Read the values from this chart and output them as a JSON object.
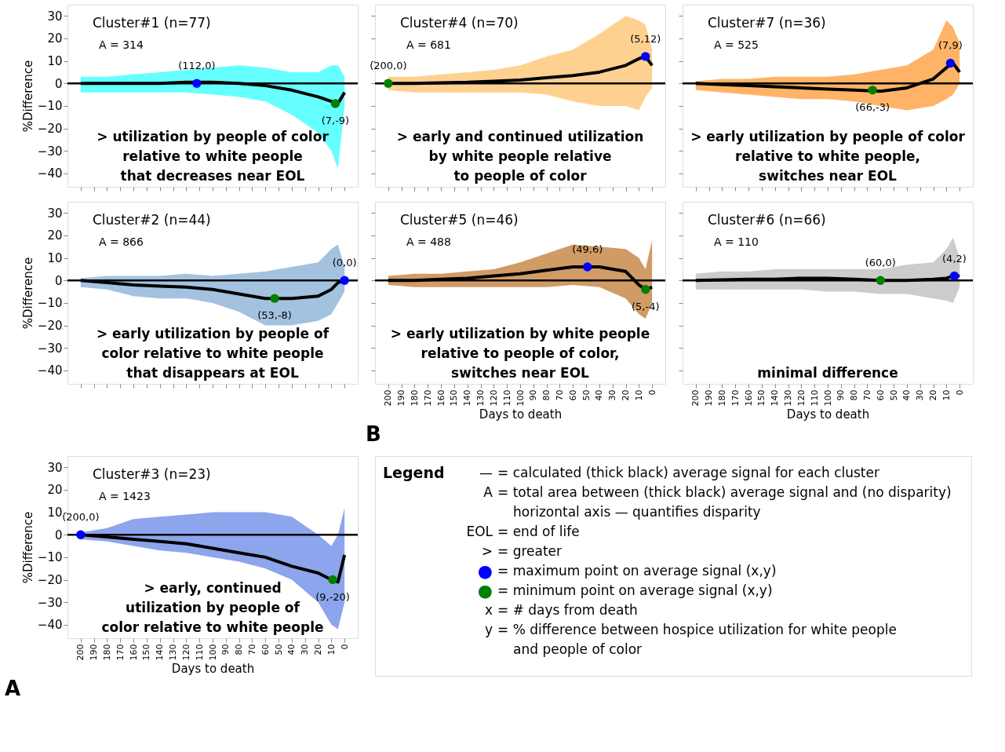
{
  "chart_data": [
    {
      "type": "line",
      "title": "Cluster#1 (n=77)",
      "ylabel": "%Difference",
      "tick_labels": "y",
      "grid": false,
      "xlim": [
        210,
        -10
      ],
      "ylim": [
        -46,
        35
      ],
      "xticks": [
        200,
        190,
        180,
        170,
        160,
        150,
        140,
        130,
        120,
        110,
        100,
        90,
        80,
        70,
        60,
        50,
        40,
        30,
        20,
        10,
        0
      ],
      "yticks": [
        -40,
        -30,
        -20,
        -10,
        0,
        10,
        20,
        30
      ],
      "x": [
        200,
        180,
        160,
        140,
        120,
        100,
        80,
        60,
        40,
        20,
        10,
        5,
        0
      ],
      "series": [
        {
          "type": "line",
          "color": "#000000",
          "values": [
            0,
            0,
            0,
            0,
            0.5,
            0.5,
            0,
            -1,
            -3,
            -6,
            -8,
            -9,
            -4
          ],
          "lower": [
            -4,
            -4,
            -4,
            -4,
            -4,
            -5,
            -6,
            -8,
            -14,
            -22,
            -30,
            -38,
            -10
          ],
          "upper": [
            3,
            3,
            4,
            5,
            6,
            7,
            8,
            7,
            5,
            5,
            8,
            8,
            3
          ]
        },
        {
          "type": "scatter",
          "color": "#0000ff",
          "x": [
            112
          ],
          "values": [
            0
          ]
        },
        {
          "type": "scatter",
          "color": "#008000",
          "x": [
            7
          ],
          "values": [
            -9
          ]
        }
      ],
      "ref_lines": [
        {
          "axis": "y",
          "value": 0
        }
      ],
      "colors": [
        "#00ffff"
      ],
      "annotations": [
        "A = 314",
        "> utilization by people of color\nrelative to white people\nthat decreases near EOL",
        {
          "text": "(112,0)",
          "x": 112,
          "y": 0
        },
        {
          "text": "(7,-9)",
          "x": 7,
          "y": -9
        }
      ]
    },
    {
      "type": "line",
      "title": "Cluster#4 (n=70)",
      "tick_labels": false,
      "grid": false,
      "xlim": [
        210,
        -10
      ],
      "ylim": [
        -46,
        35
      ],
      "xticks": [
        200,
        190,
        180,
        170,
        160,
        150,
        140,
        130,
        120,
        110,
        100,
        90,
        80,
        70,
        60,
        50,
        40,
        30,
        20,
        10,
        0
      ],
      "yticks": [
        -40,
        -30,
        -20,
        -10,
        0,
        10,
        20,
        30
      ],
      "x": [
        200,
        180,
        160,
        140,
        120,
        100,
        80,
        60,
        40,
        20,
        10,
        5,
        0
      ],
      "series": [
        {
          "type": "line",
          "color": "#000000",
          "values": [
            0,
            0,
            0.3,
            0.5,
            1,
            1.5,
            2.5,
            3.5,
            5,
            8,
            11,
            12,
            8
          ],
          "lower": [
            -3,
            -4,
            -4,
            -4,
            -4,
            -4,
            -5,
            -8,
            -10,
            -10,
            -12,
            -6,
            -2
          ],
          "upper": [
            3,
            3,
            4,
            5,
            6,
            8,
            12,
            15,
            22,
            30,
            28,
            26,
            15
          ]
        },
        {
          "type": "scatter",
          "color": "#0000ff",
          "x": [
            5
          ],
          "values": [
            12
          ]
        },
        {
          "type": "scatter",
          "color": "#008000",
          "x": [
            200
          ],
          "values": [
            0
          ]
        }
      ],
      "ref_lines": [
        {
          "axis": "y",
          "value": 0
        }
      ],
      "colors": [
        "#ffb347"
      ],
      "annotations": [
        "A = 681",
        "> early and continued utilization\nby white people relative\nto people of color",
        {
          "text": "(5,12)",
          "x": 5,
          "y": 12
        },
        {
          "text": "(200,0)",
          "x": 200,
          "y": 0
        }
      ]
    },
    {
      "type": "line",
      "title": "Cluster#7 (n=36)",
      "tick_labels": false,
      "grid": false,
      "xlim": [
        210,
        -10
      ],
      "ylim": [
        -46,
        35
      ],
      "xticks": [
        200,
        190,
        180,
        170,
        160,
        150,
        140,
        130,
        120,
        110,
        100,
        90,
        80,
        70,
        60,
        50,
        40,
        30,
        20,
        10,
        0
      ],
      "yticks": [
        -40,
        -30,
        -20,
        -10,
        0,
        10,
        20,
        30
      ],
      "x": [
        200,
        180,
        160,
        140,
        120,
        100,
        80,
        60,
        40,
        20,
        10,
        5,
        0
      ],
      "series": [
        {
          "type": "line",
          "color": "#000000",
          "values": [
            0,
            -0.5,
            -1,
            -1.5,
            -2,
            -2.5,
            -3,
            -3.5,
            -2,
            2,
            7,
            9,
            5
          ],
          "lower": [
            -3,
            -4,
            -5,
            -6,
            -7,
            -7,
            -8,
            -10,
            -12,
            -10,
            -7,
            -5,
            0
          ],
          "upper": [
            1,
            2,
            2,
            3,
            3,
            3,
            4,
            6,
            8,
            15,
            28,
            25,
            18
          ]
        },
        {
          "type": "scatter",
          "color": "#0000ff",
          "x": [
            7
          ],
          "values": [
            9
          ]
        },
        {
          "type": "scatter",
          "color": "#008000",
          "x": [
            66
          ],
          "values": [
            -3
          ]
        }
      ],
      "ref_lines": [
        {
          "axis": "y",
          "value": 0
        }
      ],
      "colors": [
        "#ff8000"
      ],
      "annotations": [
        "A = 525",
        "> early utilization by people of color\nrelative to white people,\nswitches near EOL",
        {
          "text": "(7,9)",
          "x": 7,
          "y": 9
        },
        {
          "text": "(66,-3)",
          "x": 66,
          "y": -3
        }
      ]
    },
    {
      "type": "line",
      "title": "Cluster#2 (n=44)",
      "ylabel": "%Difference",
      "tick_labels": "y",
      "grid": false,
      "xlim": [
        210,
        -10
      ],
      "ylim": [
        -46,
        35
      ],
      "xticks": [
        200,
        190,
        180,
        170,
        160,
        150,
        140,
        130,
        120,
        110,
        100,
        90,
        80,
        70,
        60,
        50,
        40,
        30,
        20,
        10,
        0
      ],
      "yticks": [
        -40,
        -30,
        -20,
        -10,
        0,
        10,
        20,
        30
      ],
      "x": [
        200,
        180,
        160,
        140,
        120,
        100,
        80,
        60,
        40,
        20,
        10,
        5,
        0
      ],
      "series": [
        {
          "type": "line",
          "color": "#000000",
          "values": [
            0,
            -1,
            -2,
            -2.5,
            -3,
            -4,
            -6,
            -8,
            -8,
            -7,
            -4,
            -1,
            0
          ],
          "lower": [
            -3,
            -4,
            -7,
            -8,
            -8,
            -10,
            -14,
            -20,
            -20,
            -18,
            -15,
            -10,
            -5
          ],
          "upper": [
            1,
            2,
            2,
            2,
            3,
            2,
            3,
            4,
            6,
            8,
            14,
            16,
            6
          ]
        },
        {
          "type": "scatter",
          "color": "#0000ff",
          "x": [
            0
          ],
          "values": [
            0
          ]
        },
        {
          "type": "scatter",
          "color": "#008000",
          "x": [
            53
          ],
          "values": [
            -8
          ]
        }
      ],
      "ref_lines": [
        {
          "axis": "y",
          "value": 0
        }
      ],
      "colors": [
        "#6699cc"
      ],
      "annotations": [
        "A = 866",
        "> early utilization by people of\ncolor relative to white people\nthat disappears at EOL",
        {
          "text": "(0,0)",
          "x": 0,
          "y": 0
        },
        {
          "text": "(53,-8)",
          "x": 53,
          "y": -8
        }
      ]
    },
    {
      "type": "line",
      "title": "Cluster#5 (n=46)",
      "xlabel": "Days to death",
      "tick_labels": "x",
      "grid": false,
      "xlim": [
        210,
        -10
      ],
      "ylim": [
        -46,
        35
      ],
      "xticks": [
        200,
        190,
        180,
        170,
        160,
        150,
        140,
        130,
        120,
        110,
        100,
        90,
        80,
        70,
        60,
        50,
        40,
        30,
        20,
        10,
        0
      ],
      "yticks": [
        -40,
        -30,
        -20,
        -10,
        0,
        10,
        20,
        30
      ],
      "x": [
        200,
        180,
        160,
        140,
        120,
        100,
        80,
        60,
        40,
        20,
        10,
        5,
        0
      ],
      "series": [
        {
          "type": "line",
          "color": "#000000",
          "values": [
            0,
            0,
            0.5,
            1,
            2,
            3,
            4.5,
            6,
            6,
            4,
            -2,
            -4,
            -3
          ],
          "lower": [
            -2,
            -3,
            -3,
            -3,
            -3,
            -3,
            -3,
            -2,
            -3,
            -8,
            -15,
            -17,
            -10
          ],
          "upper": [
            2,
            3,
            3,
            4,
            5,
            8,
            12,
            16,
            15,
            14,
            10,
            5,
            18
          ]
        },
        {
          "type": "scatter",
          "color": "#0000ff",
          "x": [
            49
          ],
          "values": [
            6
          ]
        },
        {
          "type": "scatter",
          "color": "#008000",
          "x": [
            5
          ],
          "values": [
            -4
          ]
        }
      ],
      "ref_lines": [
        {
          "axis": "y",
          "value": 0
        }
      ],
      "colors": [
        "#b35900"
      ],
      "annotations": [
        "A = 488",
        "> early utilization by white people\nrelative to people of color,\nswitches near EOL",
        "B",
        {
          "text": "(49,6)",
          "x": 49,
          "y": 6
        },
        {
          "text": "(5,-4)",
          "x": 5,
          "y": -4
        }
      ]
    },
    {
      "type": "line",
      "title": "Cluster#6 (n=66)",
      "xlabel": "Days to death",
      "tick_labels": "x",
      "grid": false,
      "xlim": [
        210,
        -10
      ],
      "ylim": [
        -46,
        35
      ],
      "xticks": [
        200,
        190,
        180,
        170,
        160,
        150,
        140,
        130,
        120,
        110,
        100,
        90,
        80,
        70,
        60,
        50,
        40,
        30,
        20,
        10,
        0
      ],
      "yticks": [
        -40,
        -30,
        -20,
        -10,
        0,
        10,
        20,
        30
      ],
      "x": [
        200,
        180,
        160,
        140,
        120,
        100,
        80,
        60,
        40,
        20,
        10,
        5,
        0
      ],
      "series": [
        {
          "type": "line",
          "color": "#000000",
          "values": [
            0,
            0.3,
            0.5,
            0.5,
            1,
            1,
            0.5,
            0,
            0,
            0.5,
            1,
            2,
            2
          ],
          "lower": [
            -4,
            -4,
            -4,
            -4,
            -4,
            -5,
            -5,
            -6,
            -6,
            -8,
            -9,
            -10,
            -3
          ],
          "upper": [
            3,
            4,
            4,
            5,
            5,
            5,
            5,
            5,
            7,
            8,
            14,
            19,
            10
          ]
        },
        {
          "type": "scatter",
          "color": "#0000ff",
          "x": [
            4
          ],
          "values": [
            2
          ]
        },
        {
          "type": "scatter",
          "color": "#008000",
          "x": [
            60
          ],
          "values": [
            0
          ]
        }
      ],
      "ref_lines": [
        {
          "axis": "y",
          "value": 0
        }
      ],
      "colors": [
        "#aaaaaa"
      ],
      "annotations": [
        "A = 110",
        "minimal difference",
        {
          "text": "(4,2)",
          "x": 4,
          "y": 2
        },
        {
          "text": "(60,0)",
          "x": 60,
          "y": 0
        }
      ]
    },
    {
      "type": "line",
      "title": "Cluster#3 (n=23)",
      "xlabel": "Days to death",
      "ylabel": "%Difference",
      "grid": false,
      "xlim": [
        210,
        -10
      ],
      "ylim": [
        -46,
        35
      ],
      "xticks": [
        200,
        190,
        180,
        170,
        160,
        150,
        140,
        130,
        120,
        110,
        100,
        90,
        80,
        70,
        60,
        50,
        40,
        30,
        20,
        10,
        0
      ],
      "yticks": [
        -40,
        -30,
        -20,
        -10,
        0,
        10,
        20,
        30
      ],
      "x": [
        200,
        180,
        160,
        140,
        120,
        100,
        80,
        60,
        40,
        20,
        10,
        5,
        0
      ],
      "series": [
        {
          "type": "line",
          "color": "#000000",
          "values": [
            0,
            -1,
            -2,
            -3,
            -4,
            -6,
            -8,
            -10,
            -14,
            -17,
            -20,
            -21,
            -9
          ],
          "lower": [
            -2,
            -3,
            -5,
            -7,
            -8,
            -10,
            -12,
            -15,
            -20,
            -30,
            -40,
            -42,
            -30
          ],
          "upper": [
            1,
            3,
            7,
            8,
            9,
            10,
            10,
            10,
            8,
            0,
            -5,
            0,
            12
          ]
        },
        {
          "type": "scatter",
          "color": "#0000ff",
          "x": [
            200
          ],
          "values": [
            0
          ]
        },
        {
          "type": "scatter",
          "color": "#008000",
          "x": [
            9
          ],
          "values": [
            -20
          ]
        }
      ],
      "ref_lines": [
        {
          "axis": "y",
          "value": 0
        }
      ],
      "colors": [
        "#4169e1"
      ],
      "annotations": [
        "A = 1423",
        "> early, continued\nutilization by people of\ncolor relative to white people",
        "A",
        {
          "text": "(200,0)",
          "x": 200,
          "y": 0
        },
        {
          "text": "(9,-20)",
          "x": 9,
          "y": -20
        }
      ]
    },
    {
      "type": "other",
      "annotations": [
        "Legend",
        "— = calculated (thick black) average signal for each cluster",
        "A  = total area between (thick black) average signal and (no disparity)",
        "horizontal axis — quantifies disparity",
        "EOL = end of life",
        ">  = greater",
        "● = maximum point on average signal (x,y)",
        "● = minimum point on average signal (x,y)",
        "x  = # days from death",
        "y  = % difference between hospice utilization for white people",
        "and people of color"
      ],
      "colors": [
        null,
        null,
        null,
        null,
        null,
        null,
        "#0000ff",
        "#008000",
        null,
        null,
        null
      ]
    }
  ]
}
